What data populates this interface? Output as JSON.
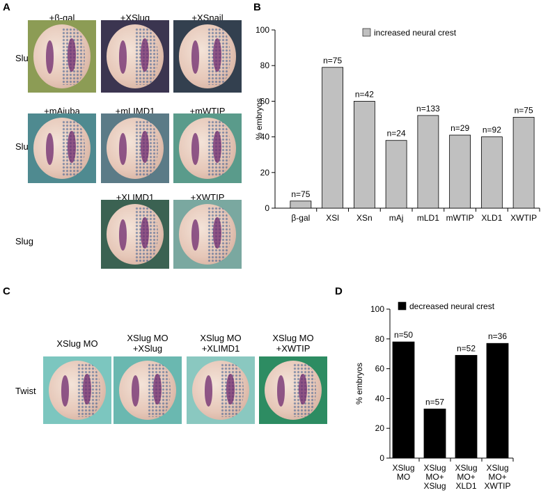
{
  "panel_labels": [
    "A",
    "B",
    "C",
    "D"
  ],
  "panel_a": {
    "rows": [
      {
        "label": "Slug",
        "images": [
          "+β-gal",
          "+XSlug",
          "+XSnail"
        ]
      },
      {
        "label": "Slug",
        "images": [
          "+mAjuba",
          "+mLIMD1",
          "+mWTIP"
        ]
      },
      {
        "label": "Slug",
        "images": [
          "+XLIMD1",
          "+XWTIP"
        ]
      }
    ]
  },
  "panel_c": {
    "rows": [
      {
        "label": "Twist",
        "images": [
          "XSlug MO",
          "XSlug MO\n+XSlug",
          "XSlug MO\n+XLIMD1",
          "XSlug MO\n+XWTIP"
        ]
      }
    ]
  },
  "chart_data": [
    {
      "type": "bar",
      "ylabel": "% embryos",
      "categories": [
        "β-gal",
        "XSl",
        "XSn",
        "mAj",
        "mLD1",
        "mWTIP",
        "XLD1",
        "XWTIP"
      ],
      "series": [
        {
          "name": "increased neural crest",
          "color": "#c0c0c0",
          "values": [
            4,
            79,
            60,
            38,
            52,
            41,
            40,
            51
          ]
        }
      ],
      "annotations": [
        "n=75",
        "n=75",
        "n=42",
        "n=24",
        "n=133",
        "n=29",
        "n=92",
        "n=75"
      ],
      "ylim": [
        0,
        100
      ],
      "yticks": [
        0,
        20,
        40,
        60,
        80,
        100
      ],
      "legend": "top"
    },
    {
      "type": "bar",
      "ylabel": "% embryos",
      "categories": [
        "XSlug\nMO",
        "XSlug\nMO+\nXSlug",
        "XSlug\nMO+\nXLD1",
        "XSlug\nMO+\nXWTIP"
      ],
      "series": [
        {
          "name": "decreased neural crest",
          "color": "#000000",
          "values": [
            78,
            33,
            69,
            77
          ]
        }
      ],
      "annotations": [
        "n=50",
        "n=57",
        "n=52",
        "n=36"
      ],
      "ylim": [
        0,
        100
      ],
      "yticks": [
        0,
        20,
        40,
        60,
        80,
        100
      ],
      "legend": "top"
    }
  ]
}
